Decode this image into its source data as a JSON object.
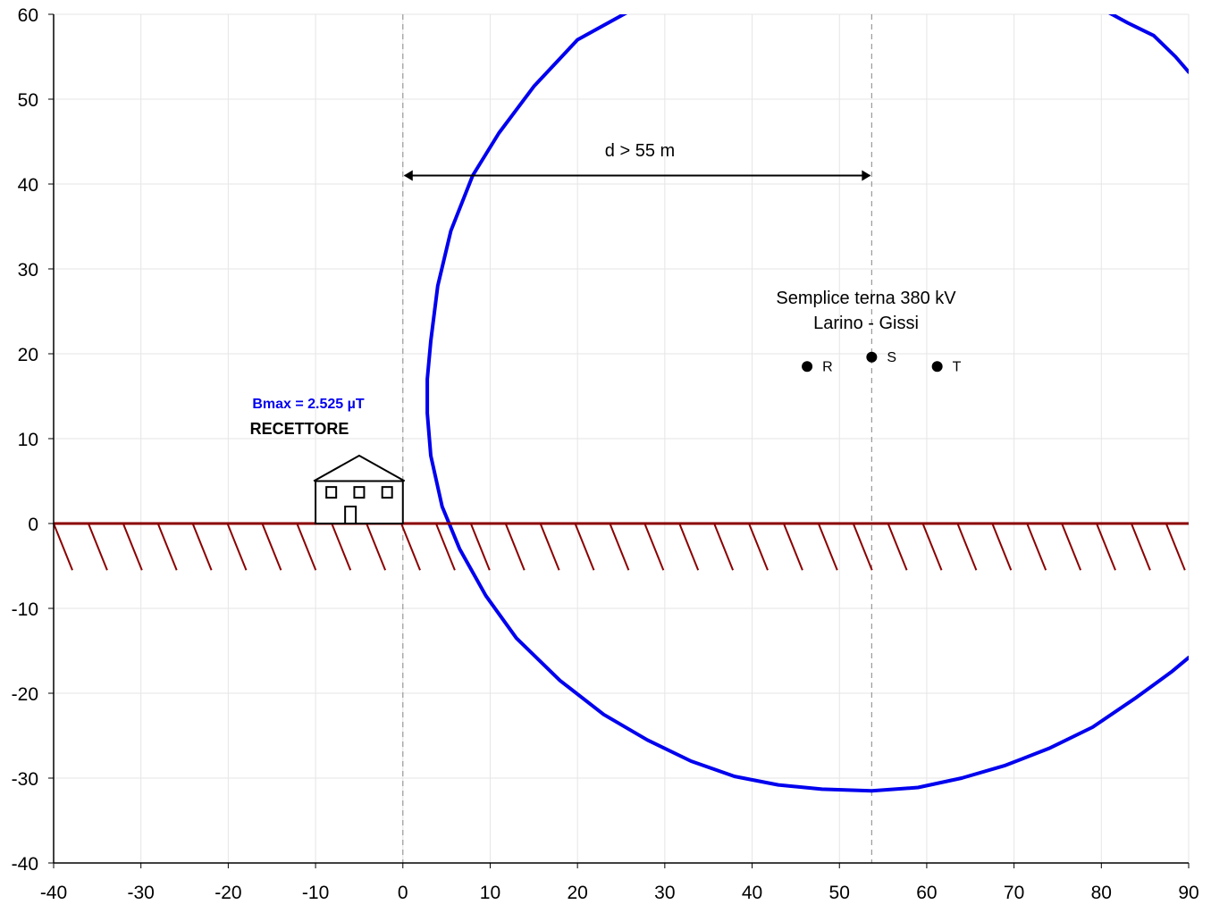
{
  "chart_data": {
    "type": "scatter",
    "title": "",
    "xlabel": "",
    "ylabel": "",
    "xlim": [
      -40,
      90
    ],
    "ylim": [
      -40,
      60
    ],
    "grid": true,
    "x_ticks": [
      -40,
      -30,
      -20,
      -10,
      0,
      10,
      20,
      30,
      40,
      50,
      60,
      70,
      80,
      90
    ],
    "y_ticks": [
      -40,
      -30,
      -20,
      -10,
      0,
      10,
      20,
      30,
      40,
      50,
      60
    ],
    "x_tick_labels": [
      "-40",
      "-30",
      "-20",
      "-10",
      "0",
      "10",
      "20",
      "30",
      "40",
      "50",
      "60",
      "70",
      "80",
      "90"
    ],
    "y_tick_labels": [
      "-40",
      "-30",
      "-20",
      "-10",
      "0",
      "10",
      "20",
      "30",
      "40",
      "50",
      "60"
    ],
    "series": [
      {
        "color": "#0000ee",
        "x": [
          26,
          20,
          15,
          11,
          8,
          5.5,
          4,
          3.2,
          2.8,
          2.8,
          3.2,
          4.5,
          6.5,
          9.5,
          13,
          18,
          23,
          28,
          33,
          38,
          43,
          48,
          53.7,
          59,
          64,
          69,
          74,
          79,
          84,
          88,
          90
        ],
        "y": [
          60.4,
          57,
          51.5,
          46,
          41,
          34.5,
          28,
          21.5,
          17,
          13,
          8,
          2,
          -3,
          -8.5,
          -13.5,
          -18.5,
          -22.5,
          -25.5,
          -28,
          -29.8,
          -30.8,
          -31.3,
          -31.5,
          -31.1,
          -30,
          -28.5,
          -26.5,
          -24,
          -20.5,
          -17.5,
          -15.8
        ]
      },
      {
        "color": "#0000ee",
        "x": [
          80.5,
          83,
          86,
          88.5,
          90
        ],
        "y": [
          60.4,
          59,
          57.5,
          55,
          53.2
        ]
      }
    ],
    "phases": [
      {
        "name": "R",
        "x": 46.3,
        "y": 18.5
      },
      {
        "name": "S",
        "x": 53.7,
        "y": 19.6
      },
      {
        "name": "T",
        "x": 61.2,
        "y": 18.5
      }
    ],
    "reference_lines_x": [
      0,
      53.7
    ],
    "ground_level_y": 0,
    "ground_color": "#8b0000",
    "bmax_color": "#0000ee",
    "annotations": {
      "distance": "d > 55 m",
      "line_title_1": "Semplice terna 380 kV",
      "line_title_2": "Larino - Gissi",
      "bmax": "Bmax = 2.525 µT",
      "receptor": "RECETTORE"
    }
  }
}
